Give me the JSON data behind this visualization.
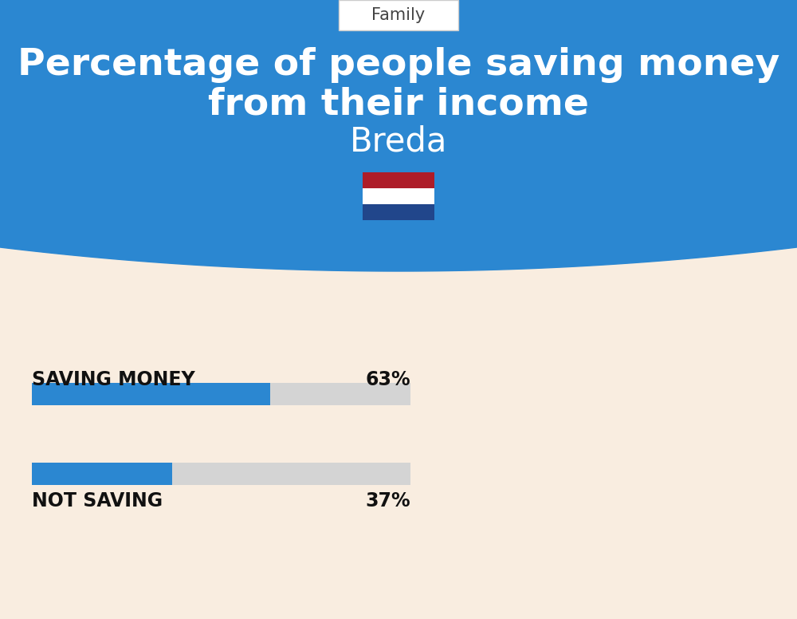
{
  "title_line1": "Percentage of people saving money",
  "title_line2": "from their income",
  "city": "Breda",
  "category_label": "Family",
  "bar1_label": "SAVING MONEY",
  "bar1_value": 63,
  "bar1_pct": "63%",
  "bar2_label": "NOT SAVING",
  "bar2_value": 37,
  "bar2_pct": "37%",
  "bar_color": "#2b87d1",
  "bar_bg_color": "#d4d4d4",
  "header_bg_color": "#2b87d1",
  "page_bg_color": "#f9ede0",
  "title_color": "#ffffff",
  "city_color": "#ffffff",
  "label_color": "#111111",
  "pct_color": "#111111",
  "category_box_color": "#ffffff",
  "category_text_color": "#444444",
  "fig_width": 10.0,
  "fig_height": 7.76
}
